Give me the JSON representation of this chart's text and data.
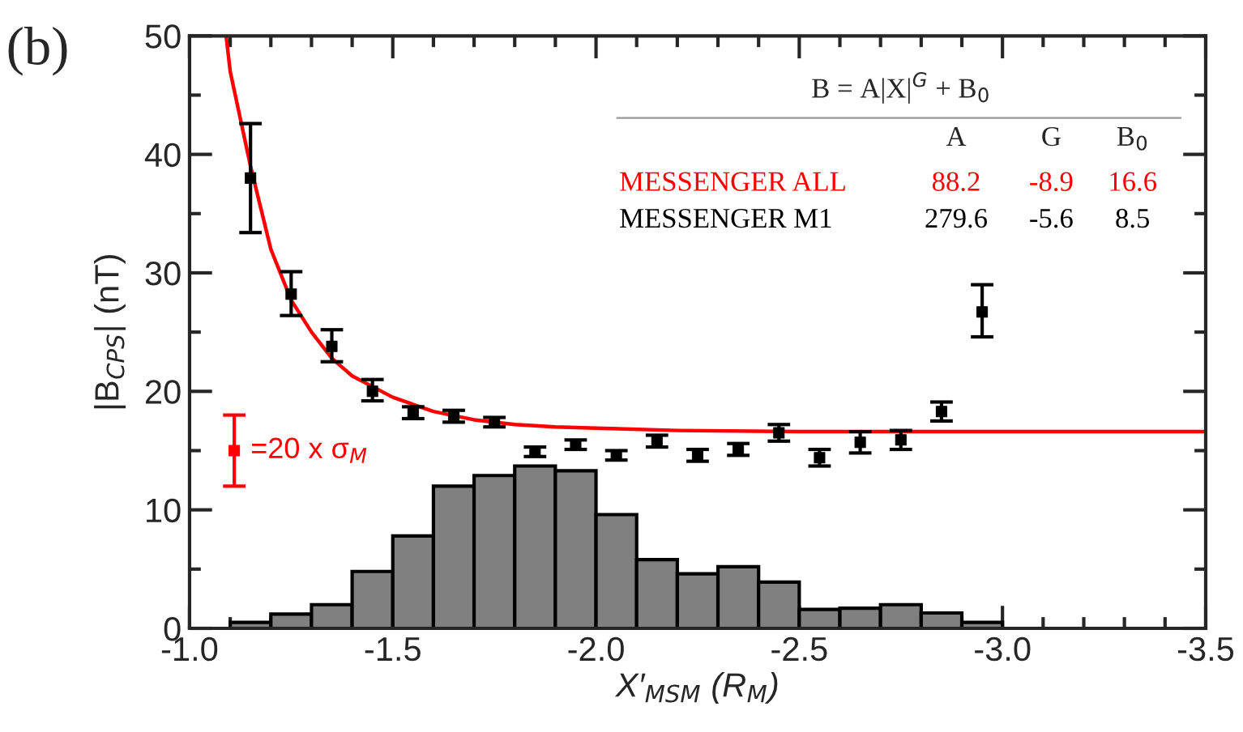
{
  "chart_data": {
    "type": "histogram",
    "xlabel": "X′$_{MSM}$ (R$_{M}$)",
    "ylabel": "|B$_{CPS}$| (nT)",
    "xlim": [
      -1.0,
      -3.5
    ],
    "xticks": [
      {
        "value": -1,
        "label": "-1.0"
      },
      -1.5,
      {
        "value": -2,
        "label": "-2.0"
      },
      -2.5,
      {
        "value": -3,
        "label": "-3.0"
      },
      -3.5
    ],
    "ylim": [
      0,
      50
    ],
    "yticks": [
      0,
      10,
      20,
      30,
      40,
      50
    ],
    "grid": false,
    "series": [
      {
        "color": "#808080",
        "bins": [
          -1.1,
          -1.2,
          -1.3,
          -1.4,
          -1.5,
          -1.6,
          -1.7,
          -1.8,
          -1.9,
          -2.0,
          -2.1,
          -2.2,
          -2.3,
          -2.4,
          -2.5,
          -2.6,
          -2.7,
          -2.8,
          -2.9,
          -3.0
        ],
        "values": [
          0.5,
          1.2,
          2.0,
          4.8,
          7.8,
          12.0,
          12.9,
          13.7,
          13.3,
          9.6,
          5.8,
          4.6,
          5.2,
          3.9,
          1.6,
          1.7,
          2.0,
          1.3,
          0.5
        ]
      },
      {
        "type": "scatter",
        "color": "#000000",
        "marker": "square",
        "x": [
          -1.15,
          -1.25,
          -1.35,
          -1.45,
          -1.55,
          -1.65,
          -1.75,
          -1.85,
          -1.95,
          -2.05,
          -2.15,
          -2.25,
          -2.35,
          -2.45,
          -2.55,
          -2.65,
          -2.75,
          -2.85,
          -2.95
        ],
        "values": [
          38.0,
          28.2,
          23.8,
          20.0,
          18.2,
          17.9,
          17.4,
          14.9,
          15.5,
          14.6,
          15.8,
          14.6,
          15.1,
          16.5,
          14.4,
          15.7,
          15.9,
          18.3,
          26.7
        ],
        "errors": [
          [
            33.4,
            42.6
          ],
          [
            26.4,
            30.1
          ],
          [
            22.5,
            25.2
          ],
          [
            19.2,
            21.0
          ],
          [
            17.7,
            18.7
          ],
          [
            17.4,
            18.4
          ],
          [
            17.0,
            17.8
          ],
          [
            14.5,
            15.3
          ],
          [
            15.1,
            15.9
          ],
          [
            14.2,
            15.0
          ],
          [
            15.3,
            16.3
          ],
          [
            14.1,
            15.1
          ],
          [
            14.6,
            15.6
          ],
          [
            15.8,
            17.2
          ],
          [
            13.7,
            15.1
          ],
          [
            14.8,
            16.6
          ],
          [
            15.1,
            16.7
          ],
          [
            17.5,
            19.1
          ],
          [
            24.6,
            29.0
          ]
        ]
      },
      {
        "type": "line",
        "color": "#ff0000",
        "x": [
          -1.09,
          -1.1,
          -1.15,
          -1.2,
          -1.25,
          -1.3,
          -1.35,
          -1.4,
          -1.5,
          -1.6,
          -1.7,
          -1.8,
          -1.9,
          -2.0,
          -2.2,
          -2.5,
          -3.5
        ],
        "values": [
          50,
          47,
          39,
          32,
          27.7,
          25,
          22.8,
          21.3,
          19.5,
          18.3,
          17.6,
          17.2,
          17.0,
          16.9,
          16.7,
          16.6,
          16.6
        ]
      },
      {
        "type": "scatter",
        "name": "=20 x σ$_{M}$",
        "color": "#ff0000",
        "marker": "square",
        "x": [
          -1.11
        ],
        "values": [
          15.0
        ],
        "errors": [
          3.0
        ]
      }
    ],
    "annotations": [
      "B = A|X|$^{G}$ + B$_{0}$",
      "A",
      "G",
      "B$_{0}$",
      "MESSENGER ALL",
      "88.2",
      "-8.9",
      "16.6",
      "MESSENGER M1",
      "279.6",
      "-5.6",
      "8.5",
      "(b)"
    ]
  }
}
